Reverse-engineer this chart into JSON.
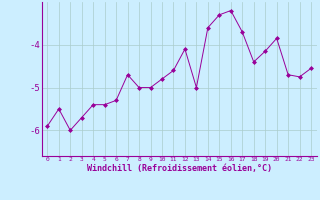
{
  "x": [
    0,
    1,
    2,
    3,
    4,
    5,
    6,
    7,
    8,
    9,
    10,
    11,
    12,
    13,
    14,
    15,
    16,
    17,
    18,
    19,
    20,
    21,
    22,
    23
  ],
  "y": [
    -5.9,
    -5.5,
    -6.0,
    -5.7,
    -5.4,
    -5.4,
    -5.3,
    -4.7,
    -5.0,
    -5.0,
    -4.8,
    -4.6,
    -4.1,
    -5.0,
    -3.6,
    -3.3,
    -3.2,
    -3.7,
    -4.4,
    -4.15,
    -3.85,
    -4.7,
    -4.75,
    -4.55
  ],
  "line_color": "#990099",
  "marker": "D",
  "marker_size": 2.0,
  "bg_color": "#cceeff",
  "grid_color": "#aacccc",
  "xlabel": "Windchill (Refroidissement éolien,°C)",
  "xlabel_color": "#990099",
  "tick_color": "#990099",
  "ylim": [
    -6.6,
    -3.0
  ],
  "yticks": [
    -6,
    -5,
    -4
  ],
  "xlim": [
    -0.5,
    23.5
  ],
  "spine_color": "#990099",
  "figsize": [
    3.2,
    2.0
  ],
  "dpi": 100
}
